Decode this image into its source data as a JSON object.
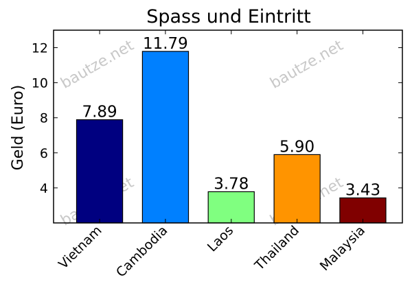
{
  "chart_data": {
    "type": "bar",
    "title": "Spass und Eintritt",
    "xlabel": "",
    "ylabel": "Geld (Euro)",
    "categories": [
      "Vietnam",
      "Cambodia",
      "Laos",
      "Thailand",
      "Malaysia"
    ],
    "values": [
      7.89,
      11.79,
      3.78,
      5.9,
      3.43
    ],
    "value_labels": [
      "7.89",
      "11.79",
      "3.78",
      "5.90",
      "3.43"
    ],
    "colors": [
      "#000080",
      "#0080ff",
      "#80ff80",
      "#ff9400",
      "#800000"
    ],
    "ylim": [
      2,
      13
    ],
    "yticks": [
      4,
      6,
      8,
      10,
      12
    ],
    "grid": false,
    "watermark": "bautze.net"
  }
}
